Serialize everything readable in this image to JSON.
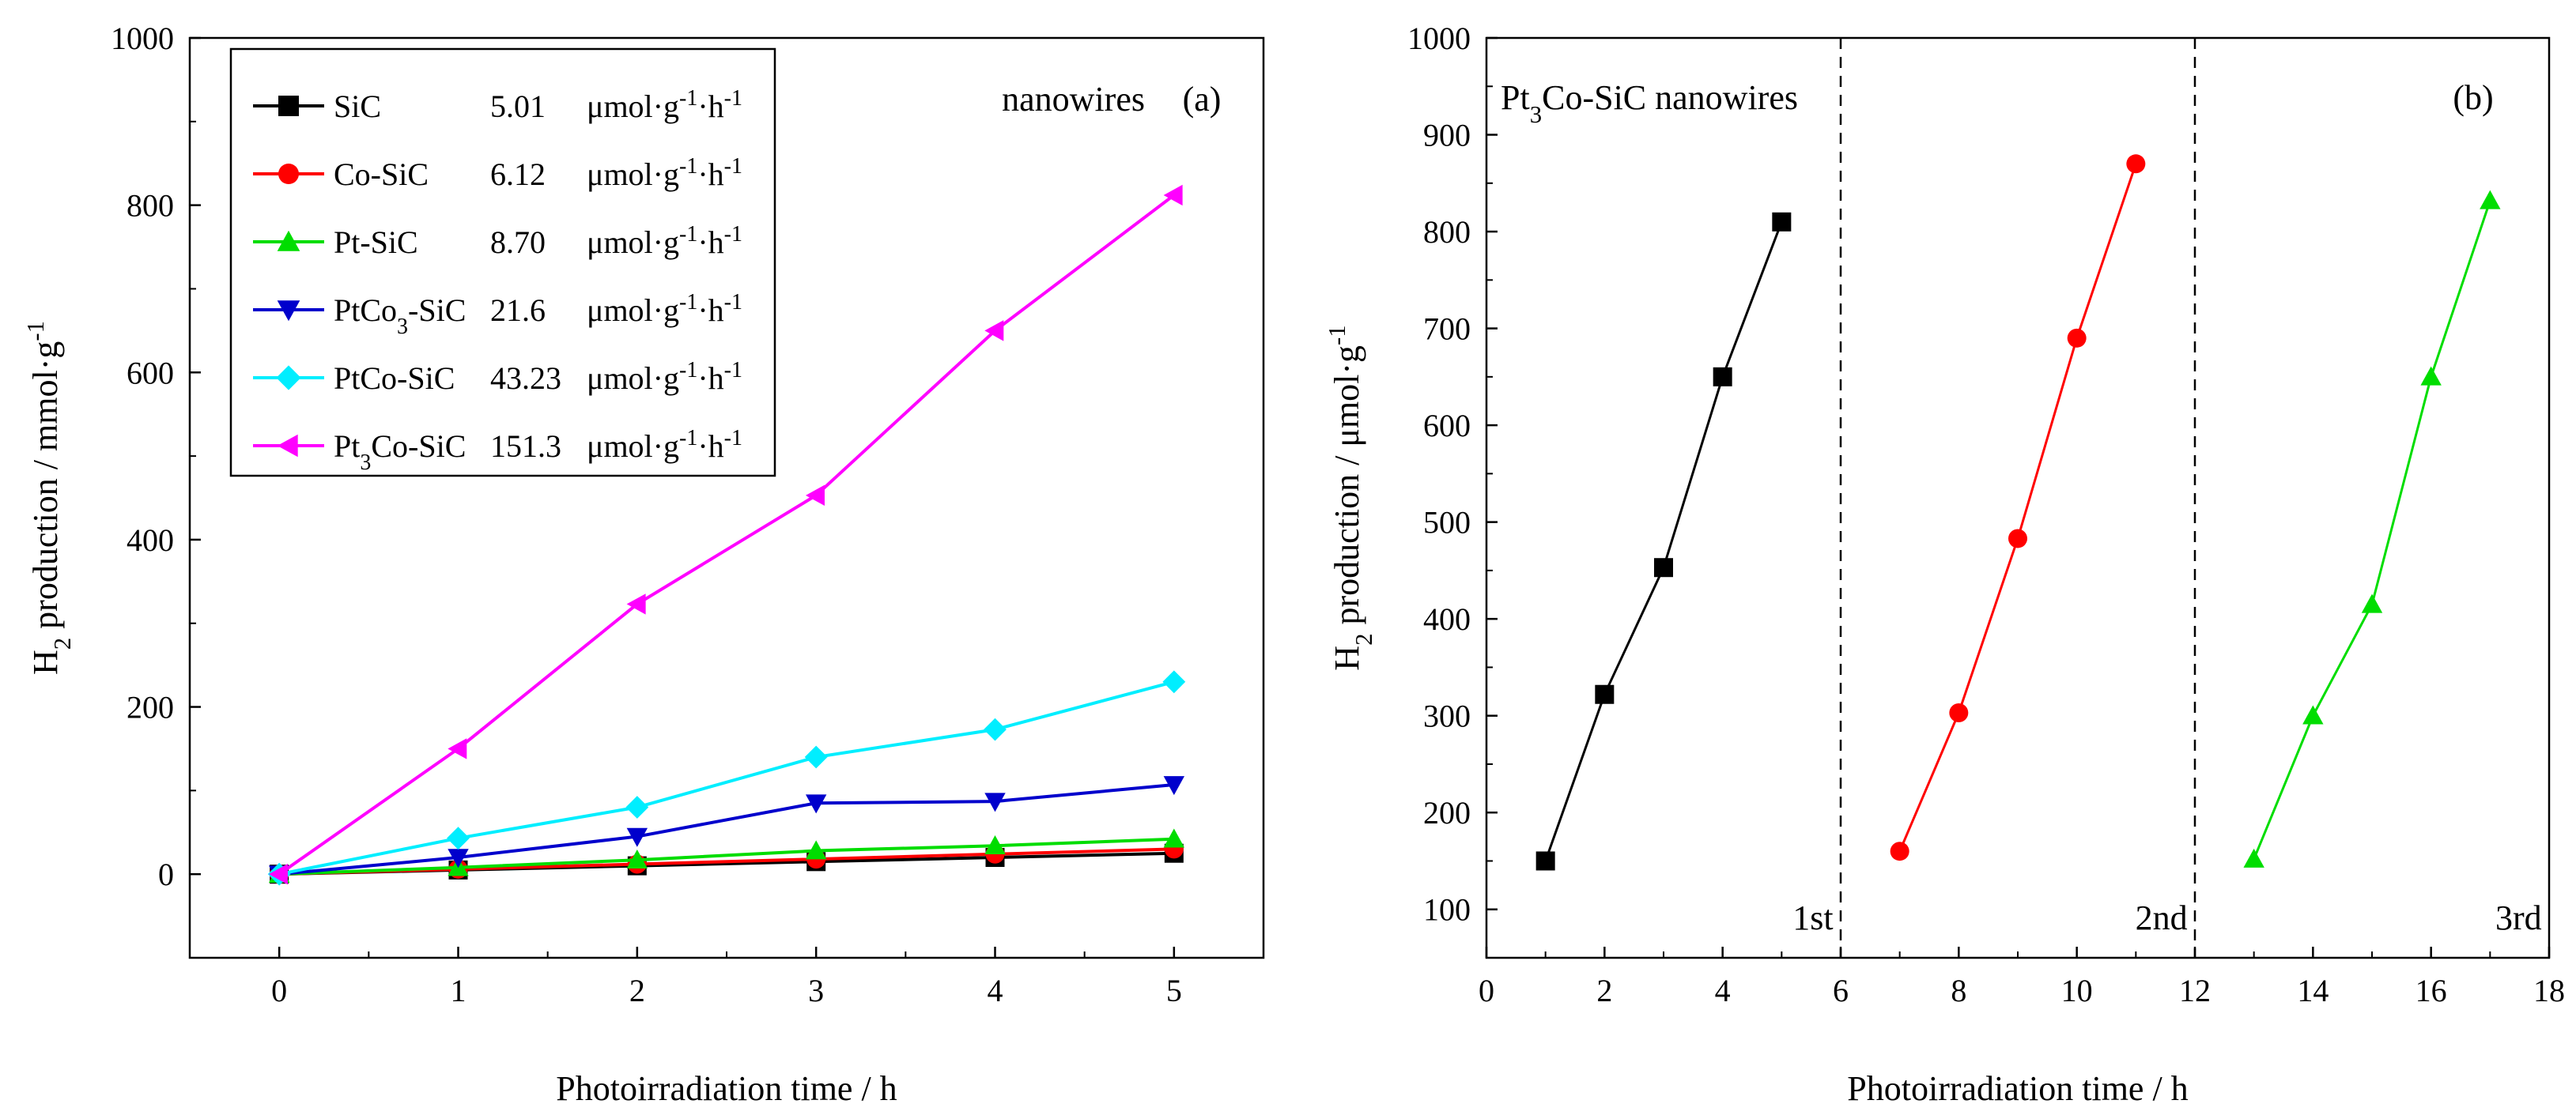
{
  "chart_data": [
    {
      "type": "line",
      "panel_label": "(a)",
      "annotation": "nanowires",
      "xlabel": "Photoirradiation time / h",
      "ylabel": "H2 production / mmol·g-1",
      "xlim": [
        -0.5,
        5.5
      ],
      "ylim": [
        -100,
        1000
      ],
      "xticks": [
        0,
        1,
        2,
        3,
        4,
        5
      ],
      "yticks": [
        0,
        200,
        400,
        600,
        800,
        1000
      ],
      "x": [
        0,
        1,
        2,
        3,
        4,
        5
      ],
      "legend_location": "top-left",
      "series": [
        {
          "name": "SiC",
          "rate": "5.01",
          "unit": "μmol·g-1·h-1",
          "marker": "square",
          "color": "#000000",
          "values": [
            0,
            5,
            10,
            15,
            20,
            25
          ]
        },
        {
          "name": "Co-SiC",
          "rate": "6.12",
          "unit": "μmol·g-1·h-1",
          "marker": "circle",
          "color": "#ff0000",
          "values": [
            0,
            6,
            12,
            18,
            24,
            30
          ]
        },
        {
          "name": "Pt-SiC",
          "rate": "8.70",
          "unit": "μmol·g-1·h-1",
          "marker": "triangle-up",
          "color": "#00dd00",
          "values": [
            0,
            8,
            17,
            28,
            34,
            42
          ]
        },
        {
          "name": "PtCo3-SiC",
          "rate": "21.6",
          "unit": "μmol·g-1·h-1",
          "marker": "triangle-down",
          "color": "#0000cc",
          "values": [
            0,
            20,
            45,
            85,
            87,
            107
          ]
        },
        {
          "name": "PtCo-SiC",
          "rate": "43.23",
          "unit": "μmol·g-1·h-1",
          "marker": "diamond",
          "color": "#00eeff",
          "values": [
            0,
            43,
            80,
            140,
            173,
            230
          ]
        },
        {
          "name": "Pt3Co-SiC",
          "rate": "151.3",
          "unit": "μmol·g-1·h-1",
          "marker": "triangle-left",
          "color": "#ff00ff",
          "values": [
            0,
            150,
            323,
            453,
            650,
            812
          ]
        }
      ]
    },
    {
      "type": "line",
      "panel_label": "(b)",
      "title": "Pt3Co-SiC nanowires",
      "xlabel": "Photoirradiation time / h",
      "ylabel": "H2 production / μmol·g-1",
      "xlim": [
        0,
        18
      ],
      "ylim": [
        50,
        1000
      ],
      "xticks": [
        0,
        2,
        4,
        6,
        8,
        10,
        12,
        14,
        16,
        18
      ],
      "yticks": [
        100,
        200,
        300,
        400,
        500,
        600,
        700,
        800,
        900,
        1000
      ],
      "dividers": [
        6,
        12
      ],
      "cycle_labels": [
        {
          "text": "1st",
          "x": 5.5
        },
        {
          "text": "2nd",
          "x": 11.5
        },
        {
          "text": "3rd",
          "x": 17.5
        }
      ],
      "series": [
        {
          "name": "1st",
          "marker": "square",
          "color": "#000000",
          "x": [
            1,
            2,
            3,
            4,
            5
          ],
          "values": [
            150,
            322,
            453,
            650,
            810
          ]
        },
        {
          "name": "2nd",
          "marker": "circle",
          "color": "#ff0000",
          "x": [
            7,
            8,
            9,
            10,
            11
          ],
          "values": [
            160,
            303,
            483,
            690,
            870
          ]
        },
        {
          "name": "3rd",
          "marker": "triangle-up",
          "color": "#00dd00",
          "x": [
            13,
            14,
            15,
            16,
            17
          ],
          "values": [
            152,
            300,
            415,
            650,
            832
          ]
        }
      ]
    }
  ]
}
